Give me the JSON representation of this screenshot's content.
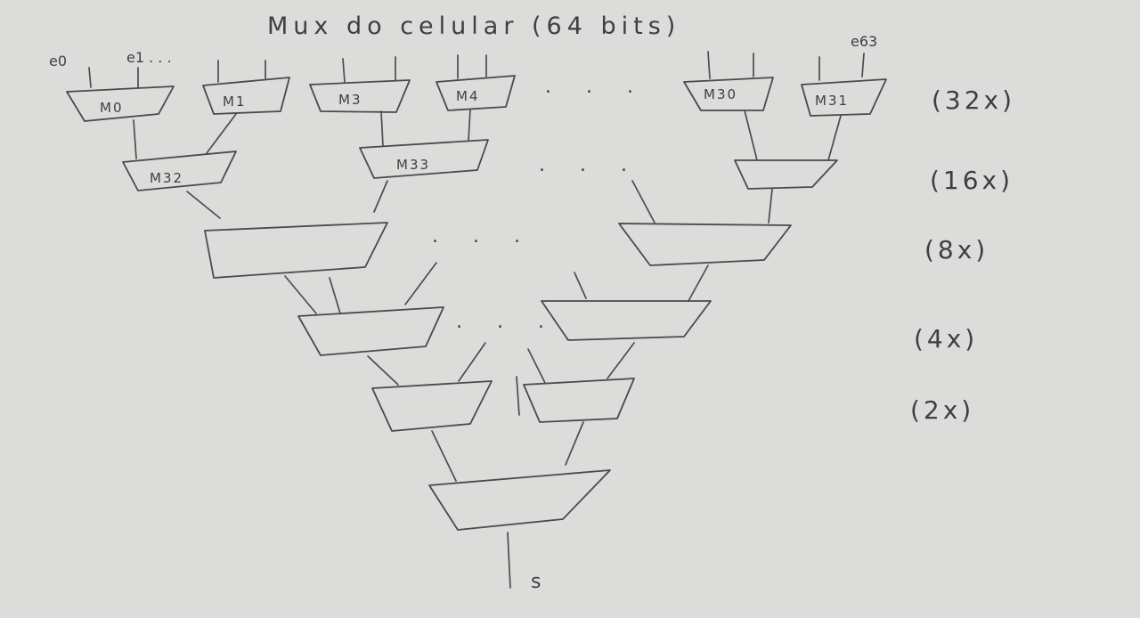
{
  "title": "Mux do celular (64 bits)",
  "inputs": {
    "first": "e0",
    "second": "e1 . . .",
    "last": "e63"
  },
  "muxes": {
    "m0": "M0",
    "m1": "M1",
    "m3": "M3",
    "m4": "M4",
    "m30": "M30",
    "m31": "M31",
    "m32": "M32",
    "m33": "M33"
  },
  "ellipsis": ". . .",
  "counts": [
    "(32x)",
    "(16x)",
    "(8x)",
    "(4x)",
    "(2x)"
  ],
  "output": "s"
}
